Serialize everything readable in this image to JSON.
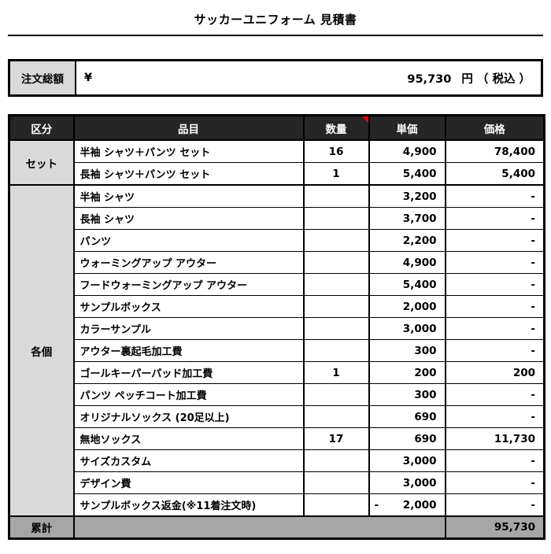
{
  "title": "サッカーユニフォーム 見積書",
  "order_total": {
    "label": "注文総額",
    "currency": "¥",
    "amount": "95,730",
    "unit": "円 （ 税込 ）"
  },
  "table": {
    "columns": [
      {
        "key": "category",
        "label": "区分"
      },
      {
        "key": "item",
        "label": "品目"
      },
      {
        "key": "quantity",
        "label": "数量",
        "has_comment_marker": true
      },
      {
        "key": "unit_price",
        "label": "単価"
      },
      {
        "key": "price",
        "label": "価格"
      }
    ],
    "groups": [
      {
        "key": "set",
        "label": "セット",
        "rows": [
          {
            "item": "半袖 シャツ＋パンツ セット",
            "quantity": "16",
            "unit_price": "4,900",
            "price": "78,400"
          },
          {
            "item": "長袖 シャツ＋パンツ セット",
            "quantity": "1",
            "unit_price": "5,400",
            "price": "5,400"
          }
        ]
      },
      {
        "key": "individual",
        "label": "各個",
        "rows": [
          {
            "item": "半袖 シャツ",
            "quantity": "",
            "unit_price": "3,200",
            "price": "-"
          },
          {
            "item": "長袖 シャツ",
            "quantity": "",
            "unit_price": "3,700",
            "price": "-"
          },
          {
            "item": "パンツ",
            "quantity": "",
            "unit_price": "2,200",
            "price": "-"
          },
          {
            "item": "ウォーミングアップ  アウター",
            "quantity": "",
            "unit_price": "4,900",
            "price": "-"
          },
          {
            "item": "フードウォーミングアップ アウター",
            "quantity": "",
            "unit_price": "5,400",
            "price": "-"
          },
          {
            "item": "サンプルボックス",
            "quantity": "",
            "unit_price": "2,000",
            "price": "-"
          },
          {
            "item": "カラーサンプル",
            "quantity": "",
            "unit_price": "3,000",
            "price": "-"
          },
          {
            "item": "アウター裏起毛加工費",
            "quantity": "",
            "unit_price": "300",
            "price": "-"
          },
          {
            "item": "ゴールキーパーパッド加工費",
            "quantity": "1",
            "unit_price": "200",
            "price": "200"
          },
          {
            "item": "パンツ ペッチコート加工費",
            "quantity": "",
            "unit_price": "300",
            "price": "-"
          },
          {
            "item": "オリジナルソックス (20足以上)",
            "quantity": "",
            "unit_price": "690",
            "price": "-"
          },
          {
            "item": "無地ソックス",
            "quantity": "17",
            "unit_price": "690",
            "price": "11,730"
          },
          {
            "item": "サイズカスタム",
            "quantity": "",
            "unit_price": "3,000",
            "price": "-"
          },
          {
            "item": "デザイン費",
            "quantity": "",
            "unit_price": "3,000",
            "price": "-"
          },
          {
            "item": "サンプルボックス返金(※11着注文時)",
            "quantity": "",
            "unit_price": "2,000",
            "unit_price_negative": true,
            "negative_sign": "-",
            "price": "-"
          }
        ]
      }
    ],
    "total": {
      "label": "累計",
      "price": "95,730"
    }
  },
  "colors": {
    "page_bg": "#ffffff",
    "header_bg": "#262626",
    "header_text": "#ffffff",
    "category_cell_bg": "#d9d9d9",
    "total_row_bg": "#a6a6a6",
    "border": "#000000",
    "comment_marker": "#ff0000"
  }
}
